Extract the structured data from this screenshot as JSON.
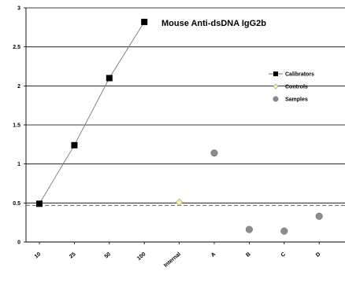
{
  "chart_data": {
    "type": "scatter",
    "title": "Mouse Anti-dsDNA IgG2b",
    "xlabel": "",
    "ylabel": "",
    "ylim": [
      0,
      3
    ],
    "y_ticks": [
      "0",
      "0.5",
      "1",
      "1.5",
      "2",
      "2.5",
      "3"
    ],
    "grid": true,
    "legend_position": "right",
    "categories": [
      "10",
      "25",
      "50",
      "100",
      "Internal",
      "A",
      "B",
      "C",
      "D"
    ],
    "cutoff_line": 0.47,
    "series": [
      {
        "name": "Calibrators",
        "marker": "square",
        "color": "#000000",
        "connected": true,
        "x": [
          "10",
          "25",
          "50",
          "100"
        ],
        "values": [
          0.49,
          1.24,
          2.1,
          2.82
        ]
      },
      {
        "name": "Controls",
        "marker": "diamond",
        "color": "#f3f1c0",
        "connected": false,
        "x": [
          "Internal"
        ],
        "values": [
          0.51
        ]
      },
      {
        "name": "Samples",
        "marker": "circle",
        "color": "#8c8c8c",
        "connected": false,
        "x": [
          "A",
          "B",
          "C",
          "D"
        ],
        "values": [
          1.14,
          0.16,
          0.14,
          0.33
        ]
      }
    ]
  }
}
